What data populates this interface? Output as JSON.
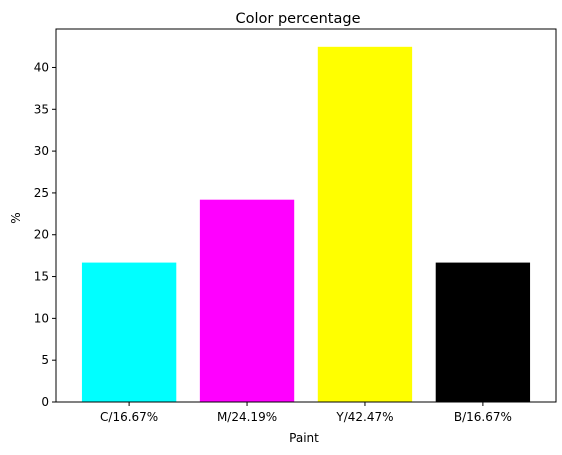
{
  "chart_data": {
    "type": "bar",
    "title": "Color percentage",
    "xlabel": "Paint",
    "ylabel": "%",
    "categories": [
      "C/16.67%",
      "M/24.19%",
      "Y/42.47%",
      "B/16.67%"
    ],
    "values": [
      16.67,
      24.19,
      42.47,
      16.67
    ],
    "colors": [
      "#00ffff",
      "#ff00ff",
      "#ffff00",
      "#000000"
    ],
    "ylim": [
      0,
      44.6
    ],
    "yticks": [
      0,
      5,
      10,
      15,
      20,
      25,
      30,
      35,
      40
    ],
    "grid": false,
    "legend": "none"
  }
}
